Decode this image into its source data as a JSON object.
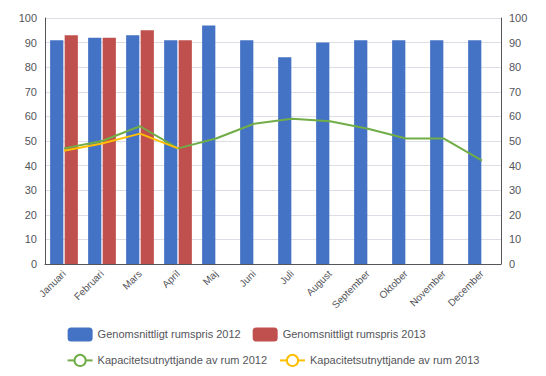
{
  "chart_data": {
    "type": "bar",
    "categories": [
      "Januari",
      "Februari",
      "Mars",
      "April",
      "Maj",
      "Juni",
      "Juli",
      "August",
      "September",
      "Oktober",
      "November",
      "December"
    ],
    "series": [
      {
        "name": "Genomsnittligt rumspris 2012",
        "type": "bar",
        "color": "#4472C4",
        "values": [
          91,
          92,
          93,
          91,
          97,
          91,
          84,
          90,
          91,
          91,
          91,
          91
        ]
      },
      {
        "name": "Genomsnittligt rumspris 2013",
        "type": "bar",
        "color": "#C0504D",
        "values": [
          93,
          92,
          95,
          91,
          null,
          null,
          null,
          null,
          null,
          null,
          null,
          null
        ]
      },
      {
        "name": "Kapacitetsutnyttjande av rum 2012",
        "type": "line",
        "color": "#70AD47",
        "axis": "y2",
        "values": [
          47,
          50,
          56,
          47,
          51,
          57,
          59,
          58,
          55,
          51,
          51,
          42
        ]
      },
      {
        "name": "Kapacitetsutnyttjande av rum 2013",
        "type": "line",
        "color": "#FFBF00",
        "axis": "y2",
        "values": [
          46,
          49,
          53,
          47,
          null,
          null,
          null,
          null,
          null,
          null,
          null,
          null
        ]
      }
    ],
    "ylim": [
      0,
      100
    ],
    "yticks": [
      0,
      10,
      20,
      30,
      40,
      50,
      60,
      70,
      80,
      90,
      100
    ],
    "y2lim": [
      0,
      100
    ],
    "y2ticks": [
      0,
      10,
      20,
      30,
      40,
      50,
      60,
      70,
      80,
      90,
      100
    ],
    "grid": true,
    "legend": "bottom"
  }
}
